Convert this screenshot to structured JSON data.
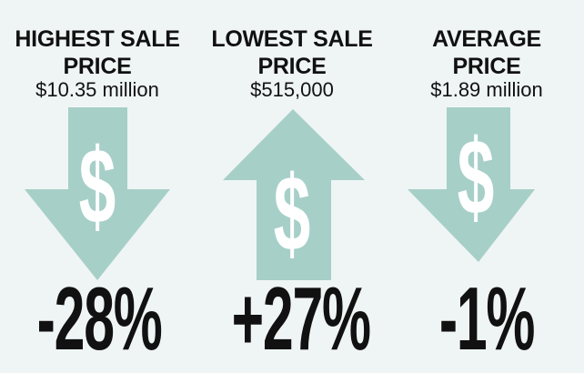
{
  "colors": {
    "background": "#eff5f4",
    "arrow": "#a6cfc8",
    "text": "#111111",
    "dollar": "#ffffff"
  },
  "metrics": [
    {
      "title_line1": "HIGHEST SALE",
      "title_line2": "PRICE",
      "value": "$10.35 million",
      "direction": "down",
      "symbol": "$",
      "change": "-28%"
    },
    {
      "title_line1": "LOWEST SALE",
      "title_line2": "PRICE",
      "value": "$515,000",
      "direction": "up",
      "symbol": "$",
      "change": "+27%"
    },
    {
      "title_line1": "AVERAGE",
      "title_line2": "PRICE",
      "value": "$1.89 million",
      "direction": "down",
      "symbol": "$",
      "change": "-1%"
    }
  ]
}
